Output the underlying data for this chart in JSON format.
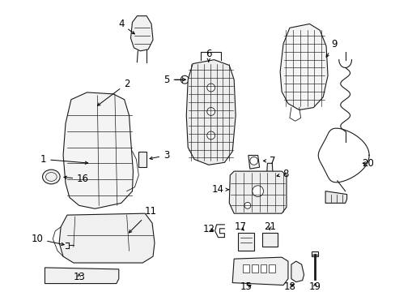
{
  "background_color": "#ffffff",
  "line_color": "#1a1a1a",
  "font_size": 8.5,
  "text_color": "#000000"
}
